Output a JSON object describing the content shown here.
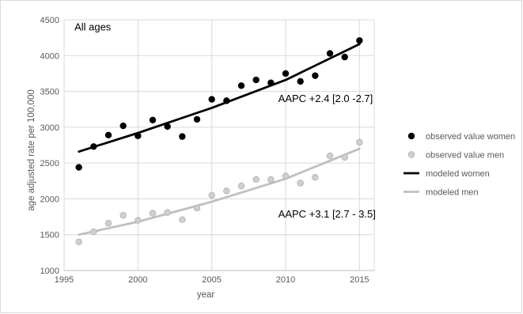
{
  "chart_data": {
    "type": "scatter",
    "title": "",
    "xlabel": "year",
    "ylabel": "age adjusted rate per 100,000",
    "xlim": [
      1995,
      2016
    ],
    "ylim": [
      1000,
      4500
    ],
    "x_ticks": [
      "1995",
      "2000",
      "2005",
      "2010",
      "2015"
    ],
    "y_ticks": [
      "1000",
      "1500",
      "2000",
      "2500",
      "3000",
      "3500",
      "4000",
      "4500"
    ],
    "grid": "vertical and horizontal",
    "legend_position": "right",
    "annotations": [
      {
        "text": "All ages",
        "x": 1995.7,
        "y": 4350
      },
      {
        "text": "AAPC +2.4 [2.0 -2.7]",
        "x": 2009.5,
        "y": 3350
      },
      {
        "text": "AAPC +3.1 [2.7 - 3.5]",
        "x": 2009.5,
        "y": 1740
      }
    ],
    "series": [
      {
        "name": "observed value women",
        "kind": "scatter",
        "color": "#000000",
        "x": [
          1996,
          1997,
          1998,
          1999,
          2000,
          2001,
          2002,
          2003,
          2004,
          2005,
          2006,
          2007,
          2008,
          2009,
          2010,
          2011,
          2012,
          2013,
          2014,
          2015
        ],
        "y": [
          2440,
          2730,
          2890,
          3020,
          2880,
          3100,
          3010,
          2870,
          3110,
          3390,
          3370,
          3580,
          3660,
          3620,
          3750,
          3640,
          3720,
          4030,
          3980,
          4210
        ]
      },
      {
        "name": "observed value men",
        "kind": "scatter",
        "color": "#cfcfcf",
        "x": [
          1996,
          1997,
          1998,
          1999,
          2000,
          2001,
          2002,
          2003,
          2004,
          2005,
          2006,
          2007,
          2008,
          2009,
          2010,
          2011,
          2012,
          2013,
          2014,
          2015
        ],
        "y": [
          1400,
          1540,
          1660,
          1770,
          1700,
          1800,
          1810,
          1710,
          1870,
          2050,
          2110,
          2180,
          2270,
          2270,
          2320,
          2220,
          2300,
          2600,
          2580,
          2790
        ]
      },
      {
        "name": "modeled women",
        "kind": "line",
        "color": "#000000",
        "x": [
          1996,
          2000,
          2005,
          2010,
          2015
        ],
        "y": [
          2660,
          2920,
          3270,
          3660,
          4160
        ]
      },
      {
        "name": "modeled men",
        "kind": "line",
        "color": "#bfbfbf",
        "x": [
          1996,
          2000,
          2005,
          2010,
          2015
        ],
        "y": [
          1500,
          1680,
          1960,
          2280,
          2700
        ]
      }
    ]
  }
}
